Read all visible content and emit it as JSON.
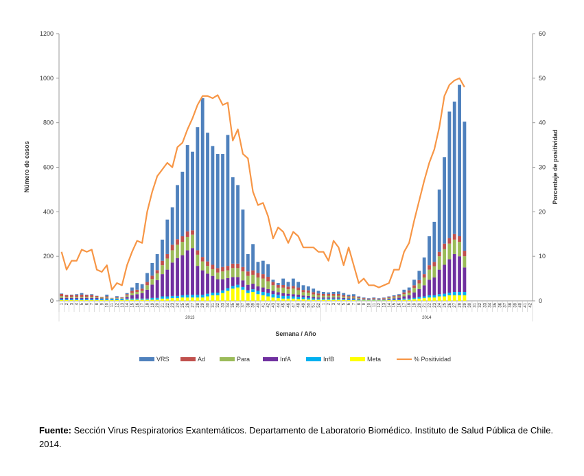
{
  "chart_data": {
    "type": "bar",
    "y_label": "Número de casos",
    "y2_label": "Porcentaje de positividad",
    "x_label": "Semana / Año",
    "x_groups": [
      "2013",
      "2014"
    ],
    "categories": [
      "1",
      "2",
      "3",
      "4",
      "5",
      "6",
      "7",
      "8",
      "9",
      "10",
      "11",
      "12",
      "13",
      "14",
      "15",
      "16",
      "17",
      "18",
      "19",
      "20",
      "21",
      "22",
      "23",
      "24",
      "25",
      "26",
      "27",
      "28",
      "29",
      "30",
      "31",
      "32",
      "33",
      "34",
      "35",
      "36",
      "37",
      "38",
      "39",
      "40",
      "41",
      "42",
      "43",
      "44",
      "45",
      "46",
      "47",
      "48",
      "49",
      "50",
      "51",
      "52",
      "1",
      "2",
      "3",
      "4",
      "5",
      "6",
      "7",
      "8",
      "9",
      "10",
      "11",
      "12",
      "13",
      "14",
      "15",
      "16",
      "17",
      "18",
      "19",
      "20",
      "21",
      "22",
      "23",
      "24",
      "25",
      "26",
      "27",
      "28",
      "29",
      "30",
      "31",
      "32",
      "33",
      "34",
      "35",
      "36",
      "37",
      "38",
      "39",
      "40",
      "41",
      "42"
    ],
    "ylim": [
      0,
      1200
    ],
    "yticks": [
      0,
      200,
      400,
      600,
      800,
      1000,
      1200
    ],
    "y2lim": [
      0,
      60
    ],
    "y2ticks": [
      0,
      10,
      20,
      30,
      40,
      50,
      60
    ],
    "grid": false,
    "series": [
      {
        "name": "VRS",
        "color": "#4f81bd",
        "values": [
          2,
          1,
          2,
          4,
          7,
          2,
          4,
          1,
          0,
          8,
          0,
          5,
          1,
          5,
          15,
          30,
          20,
          40,
          57,
          72,
          95,
          155,
          168,
          243,
          290,
          388,
          353,
          553,
          713,
          578,
          533,
          513,
          508,
          588,
          388,
          353,
          258,
          78,
          118,
          50,
          60,
          57,
          10,
          9,
          29,
          21,
          33,
          25,
          21,
          18,
          16,
          12,
          9,
          7,
          9,
          11,
          10,
          7,
          9,
          4,
          3,
          2,
          3,
          2,
          2,
          3,
          4,
          5,
          12,
          13,
          25,
          42,
          75,
          130,
          180,
          280,
          388,
          568,
          595,
          680,
          580,
          null,
          null,
          null,
          null,
          null,
          null,
          null,
          null,
          null,
          null,
          null,
          null,
          null
        ]
      },
      {
        "name": "Ad",
        "color": "#c0504d",
        "values": [
          10,
          8,
          8,
          8,
          10,
          8,
          8,
          5,
          3,
          5,
          1,
          3,
          3,
          6,
          10,
          10,
          10,
          15,
          15,
          15,
          20,
          20,
          25,
          25,
          25,
          25,
          20,
          20,
          20,
          20,
          20,
          20,
          20,
          20,
          20,
          20,
          20,
          20,
          20,
          20,
          20,
          20,
          15,
          12,
          12,
          12,
          12,
          12,
          10,
          10,
          10,
          8,
          8,
          8,
          8,
          8,
          6,
          5,
          5,
          4,
          3,
          2,
          3,
          2,
          3,
          4,
          5,
          5,
          8,
          10,
          12,
          15,
          15,
          20,
          20,
          20,
          25,
          25,
          25,
          25,
          25,
          null,
          null,
          null,
          null,
          null,
          null,
          null,
          null,
          null,
          null,
          null,
          null,
          null
        ]
      },
      {
        "name": "Para",
        "color": "#9bbb59",
        "values": [
          8,
          5,
          5,
          5,
          5,
          5,
          5,
          4,
          4,
          4,
          2,
          3,
          3,
          6,
          10,
          10,
          10,
          20,
          25,
          30,
          40,
          50,
          55,
          60,
          60,
          60,
          60,
          50,
          40,
          35,
          30,
          30,
          35,
          35,
          40,
          40,
          40,
          40,
          40,
          40,
          40,
          35,
          25,
          20,
          25,
          20,
          25,
          20,
          15,
          15,
          12,
          10,
          8,
          8,
          8,
          8,
          6,
          5,
          5,
          4,
          3,
          2,
          3,
          2,
          3,
          4,
          5,
          6,
          10,
          12,
          20,
          25,
          35,
          45,
          50,
          60,
          70,
          70,
          65,
          65,
          50,
          null,
          null,
          null,
          null,
          null,
          null,
          null,
          null,
          null,
          null,
          null,
          null,
          null
        ]
      },
      {
        "name": "InfA",
        "color": "#7030a0",
        "values": [
          5,
          5,
          5,
          5,
          5,
          5,
          5,
          5,
          3,
          3,
          2,
          2,
          2,
          8,
          15,
          20,
          25,
          40,
          60,
          80,
          100,
          120,
          150,
          170,
          180,
          200,
          210,
          130,
          110,
          90,
          75,
          60,
          50,
          45,
          40,
          35,
          30,
          25,
          25,
          20,
          20,
          18,
          15,
          12,
          12,
          10,
          10,
          10,
          8,
          8,
          6,
          5,
          5,
          5,
          5,
          5,
          5,
          4,
          4,
          3,
          2,
          2,
          2,
          2,
          3,
          4,
          5,
          8,
          10,
          15,
          25,
          35,
          50,
          70,
          80,
          110,
          130,
          150,
          170,
          160,
          110,
          null,
          null,
          null,
          null,
          null,
          null,
          null,
          null,
          null,
          null,
          null,
          null,
          null
        ]
      },
      {
        "name": "InfB",
        "color": "#00b0f0",
        "values": [
          5,
          5,
          5,
          5,
          5,
          5,
          5,
          5,
          5,
          5,
          5,
          5,
          5,
          5,
          5,
          5,
          5,
          5,
          8,
          8,
          10,
          10,
          10,
          10,
          10,
          12,
          12,
          12,
          12,
          12,
          12,
          12,
          12,
          12,
          12,
          12,
          12,
          12,
          12,
          15,
          15,
          15,
          15,
          15,
          12,
          12,
          10,
          10,
          8,
          8,
          6,
          5,
          5,
          5,
          5,
          5,
          4,
          4,
          4,
          3,
          2,
          2,
          2,
          2,
          2,
          2,
          3,
          3,
          5,
          5,
          5,
          8,
          8,
          10,
          10,
          10,
          12,
          12,
          15,
          15,
          15,
          null,
          null,
          null,
          null,
          null,
          null,
          null,
          null,
          null,
          null,
          null,
          null,
          null
        ]
      },
      {
        "name": "Meta",
        "color": "#ffff00",
        "values": [
          3,
          3,
          3,
          3,
          3,
          3,
          3,
          3,
          3,
          3,
          3,
          3,
          3,
          5,
          5,
          5,
          5,
          5,
          5,
          5,
          10,
          10,
          12,
          12,
          15,
          15,
          15,
          15,
          15,
          20,
          25,
          25,
          35,
          45,
          55,
          60,
          50,
          35,
          40,
          30,
          25,
          20,
          15,
          12,
          10,
          10,
          10,
          8,
          8,
          6,
          5,
          5,
          5,
          5,
          5,
          5,
          4,
          3,
          3,
          2,
          2,
          2,
          2,
          2,
          2,
          3,
          3,
          3,
          5,
          5,
          8,
          10,
          12,
          15,
          15,
          20,
          20,
          25,
          25,
          25,
          25,
          null,
          null,
          null,
          null,
          null,
          null,
          null,
          null,
          null,
          null,
          null,
          null,
          null
        ]
      },
      {
        "name": "% Positividad",
        "color": "#f79646",
        "type": "line",
        "axis": "y2",
        "values": [
          11,
          7,
          9,
          9,
          11.5,
          11,
          11.5,
          7,
          6.5,
          8,
          2.5,
          4,
          3.5,
          8,
          11,
          13.5,
          13,
          20,
          24.5,
          28,
          29.5,
          31,
          30,
          34.5,
          35.5,
          38.5,
          41,
          44,
          46,
          46,
          45.5,
          46.2,
          44,
          44.5,
          36,
          38.5,
          33,
          32,
          24.5,
          21.5,
          22,
          19,
          14,
          16.5,
          15.5,
          13,
          15.5,
          14.5,
          12,
          12,
          12,
          11,
          11,
          9,
          13.5,
          12,
          8,
          12,
          8,
          4,
          5,
          3.5,
          3.5,
          3,
          3.5,
          4,
          7,
          7,
          11,
          13,
          18,
          22.5,
          27,
          31,
          34,
          39,
          46,
          48.5,
          49.5,
          50,
          48,
          null,
          null,
          null,
          null,
          null,
          null,
          null,
          null,
          null,
          null,
          null,
          null,
          null
        ]
      }
    ]
  },
  "source": {
    "label": "Fuente:",
    "text": "Sección Virus Respiratorios Exantemáticos. Departamento de Laboratorio Biomédico. Instituto de Salud Pública de Chile. 2014."
  }
}
